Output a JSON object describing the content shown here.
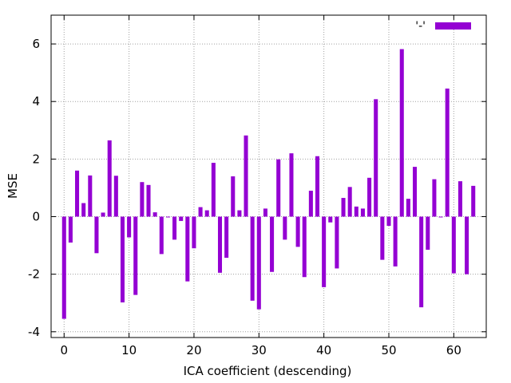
{
  "colors": {
    "bar": "#9400d3",
    "grid": "#a0a0a0",
    "axis": "#000000",
    "background": "#ffffff"
  },
  "chart_data": {
    "type": "bar",
    "title": "",
    "xlabel": "ICA coefficient (descending)",
    "ylabel": "MSE",
    "xlim": [
      -2,
      65
    ],
    "ylim": [
      -4.2,
      7
    ],
    "xticks": [
      0,
      10,
      20,
      30,
      40,
      50,
      60
    ],
    "yticks": [
      -4,
      -2,
      0,
      2,
      4,
      6
    ],
    "grid": true,
    "legend_position": "top-right",
    "series": [
      {
        "name": "'-'",
        "x": [
          0,
          1,
          2,
          3,
          4,
          5,
          6,
          7,
          8,
          9,
          10,
          11,
          12,
          13,
          14,
          15,
          16,
          17,
          18,
          19,
          20,
          21,
          22,
          23,
          24,
          25,
          26,
          27,
          28,
          29,
          30,
          31,
          32,
          33,
          34,
          35,
          36,
          37,
          38,
          39,
          40,
          41,
          42,
          43,
          44,
          45,
          46,
          47,
          48,
          49,
          50,
          51,
          52,
          53,
          54,
          55,
          56,
          57,
          58,
          59,
          60,
          61,
          62,
          63
        ],
        "values": [
          -3.55,
          -0.9,
          1.6,
          0.47,
          1.43,
          -1.27,
          0.14,
          2.65,
          1.42,
          -2.98,
          -0.72,
          -2.72,
          1.2,
          1.1,
          0.15,
          -1.3,
          0.0,
          -0.8,
          -0.15,
          -2.25,
          -1.1,
          0.33,
          0.22,
          1.87,
          -1.95,
          -1.43,
          1.4,
          0.22,
          2.82,
          -2.92,
          -3.22,
          0.28,
          -1.92,
          1.99,
          -0.8,
          2.2,
          -1.05,
          -2.1,
          0.9,
          2.1,
          -2.45,
          -0.2,
          -1.8,
          0.65,
          1.03,
          0.35,
          0.28,
          1.35,
          4.08,
          -1.5,
          -0.32,
          -1.73,
          5.82,
          0.62,
          1.73,
          -3.15,
          -1.15,
          1.3,
          0.0,
          4.45,
          -1.97,
          1.23,
          -2.0,
          1.07
        ]
      }
    ]
  }
}
